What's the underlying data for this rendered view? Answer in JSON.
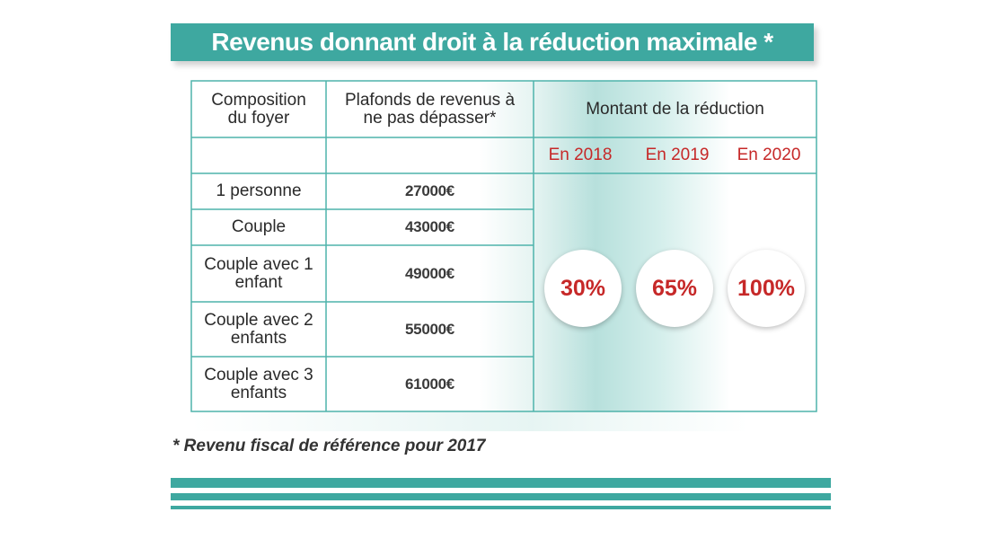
{
  "title": "Revenus donnant droit à la réduction maximale *",
  "table": {
    "col_composition": "Composition du foyer",
    "col_plafonds": "Plafonds de revenus à ne pas dépasser*",
    "col_montant": "Montant de la réduction",
    "years": [
      "En 2018",
      "En 2019",
      "En 2020"
    ],
    "rows": [
      {
        "label": "1 personne",
        "value": "27000€"
      },
      {
        "label": "Couple",
        "value": "43000€"
      },
      {
        "label": "Couple avec 1 enfant",
        "value": "49000€"
      },
      {
        "label": "Couple avec 2 enfants",
        "value": "55000€"
      },
      {
        "label": "Couple avec 3 enfants",
        "value": "61000€"
      }
    ],
    "percentages": [
      "30%",
      "65%",
      "100%"
    ]
  },
  "footnote": "* Revenu fiscal de référence pour 2017",
  "colors": {
    "accent": "#3ea8a0",
    "highlight": "#c62828"
  }
}
